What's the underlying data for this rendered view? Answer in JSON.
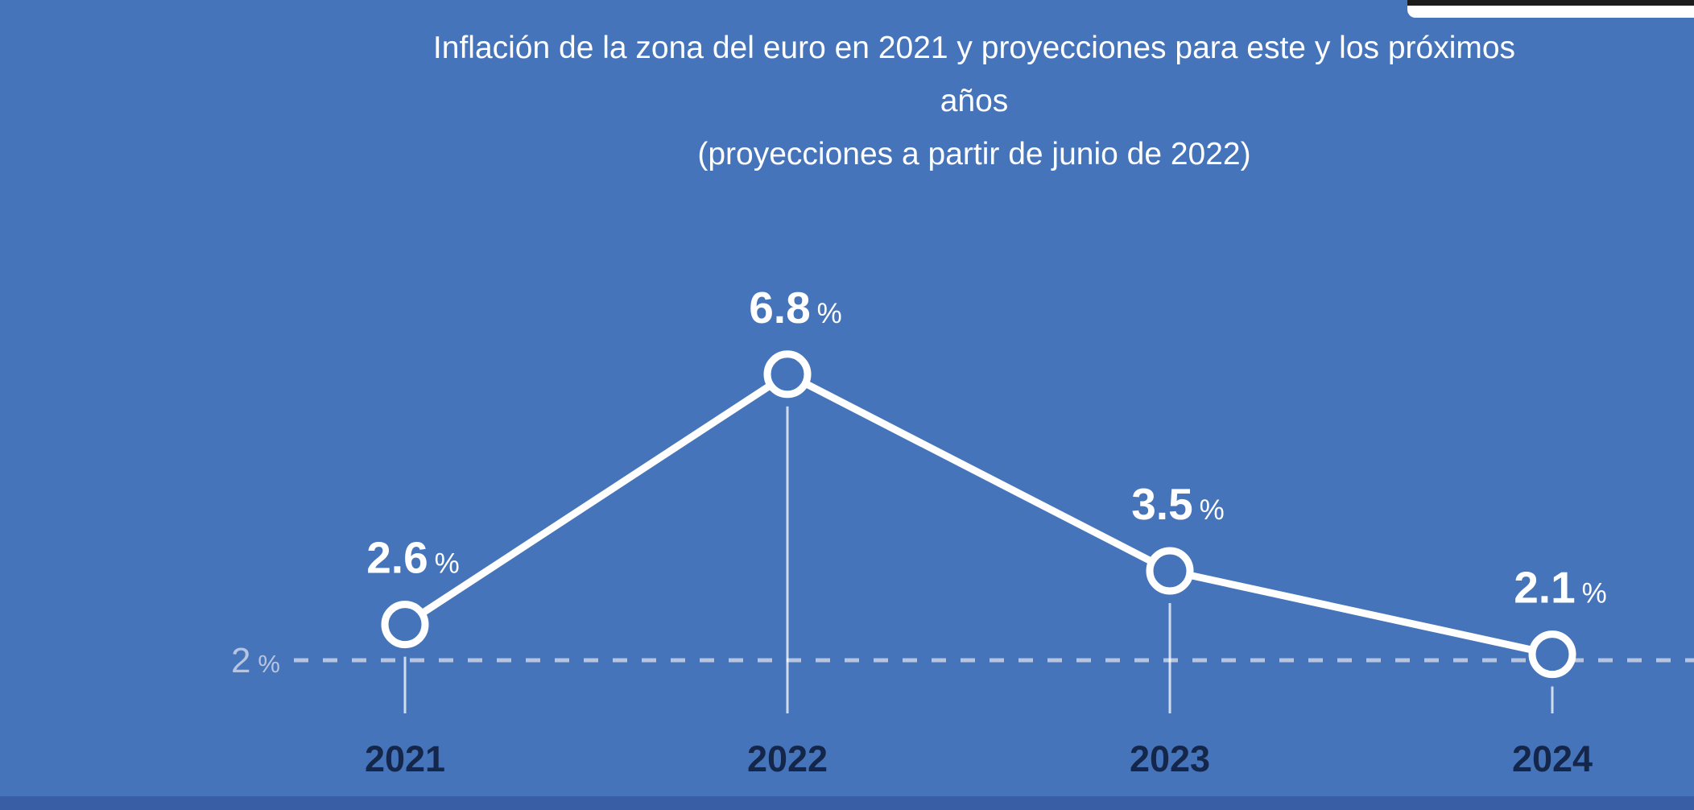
{
  "page": {
    "background": "#4674ba",
    "bottom_bar_color": "#3a5ea6",
    "corner_card_color": "#ffffff"
  },
  "header": {
    "title_lines": [
      "Inflación de la zona del euro en 2021 y proyecciones para este y los próximos",
      "años",
      "(proyecciones a partir de junio de 2022)"
    ]
  },
  "chart_data": {
    "type": "line",
    "title": "Inflación de la zona del euro en 2021 y proyecciones para este y los próximos años",
    "subtitle": "(proyecciones a partir de junio de 2022)",
    "categories": [
      "2021",
      "2022",
      "2023",
      "2024"
    ],
    "values": [
      2.6,
      6.8,
      3.5,
      2.1
    ],
    "value_labels": [
      "2.6",
      "6.8",
      "3.5",
      "2.1"
    ],
    "unit": "%",
    "reference_line": {
      "value": 2,
      "label": "2",
      "unit": "%",
      "style": "dashed",
      "color": "#b7c5e0"
    },
    "xlabel": "",
    "ylabel": "",
    "ylim": [
      2,
      7
    ],
    "grid": false,
    "legend": false,
    "marker": "open-circle",
    "line_color": "#ffffff",
    "value_label_color": "#ffffff",
    "axis_label_color": "#14274a",
    "tick_line_color": "rgba(255,255,255,0.75)"
  }
}
